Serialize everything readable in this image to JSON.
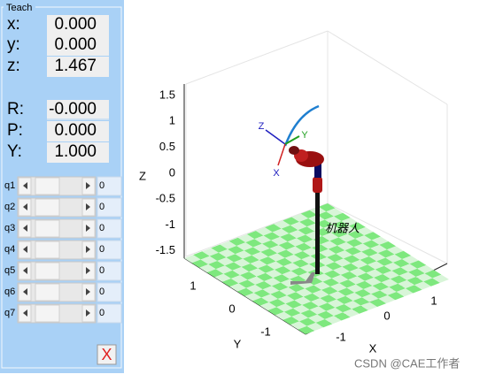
{
  "panel": {
    "title": "Teach",
    "position": [
      {
        "label": "x:",
        "value": "0.000"
      },
      {
        "label": "y:",
        "value": "0.000"
      },
      {
        "label": "z:",
        "value": "1.467"
      }
    ],
    "orientation": [
      {
        "label": "R:",
        "value": "-0.000"
      },
      {
        "label": "P:",
        "value": "0.000"
      },
      {
        "label": "Y:",
        "value": "1.000"
      }
    ],
    "joints": [
      {
        "label": "q1",
        "value": "0"
      },
      {
        "label": "q2",
        "value": "0"
      },
      {
        "label": "q3",
        "value": "0"
      },
      {
        "label": "q4",
        "value": "0"
      },
      {
        "label": "q5",
        "value": "0"
      },
      {
        "label": "q6",
        "value": "0"
      },
      {
        "label": "q7",
        "value": "0"
      }
    ],
    "close": "X"
  },
  "plot": {
    "z_label": "Z",
    "y_label": "Y",
    "x_label": "X",
    "z_ticks": [
      "1.5",
      "1",
      "0.5",
      "0",
      "-0.5",
      "-1",
      "-1.5"
    ],
    "y_ticks": [
      "1",
      "0",
      "-1"
    ],
    "x_ticks": [
      "-1",
      "0",
      "1"
    ],
    "robot_name": "机器人",
    "frame_labels": [
      "Z",
      "Y",
      "X"
    ]
  },
  "watermark": "CSDN @CAE工作者"
}
